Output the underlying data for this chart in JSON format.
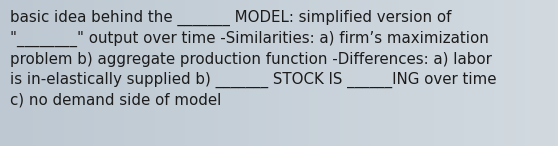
{
  "text": "basic idea behind the _______ MODEL: simplified version of\n\"________\" output over time -Similarities: a) firm’s maximization\nproblem b) aggregate production function -Differences: a) labor\nis in-elastically supplied b) _______ STOCK IS ______ING over time\nc) no demand side of model",
  "bg_left": "#bdc8d2",
  "bg_right": "#d2dae0",
  "text_color": "#1c1c1c",
  "font_size": 10.8,
  "fig_width": 5.58,
  "fig_height": 1.46,
  "dpi": 100
}
